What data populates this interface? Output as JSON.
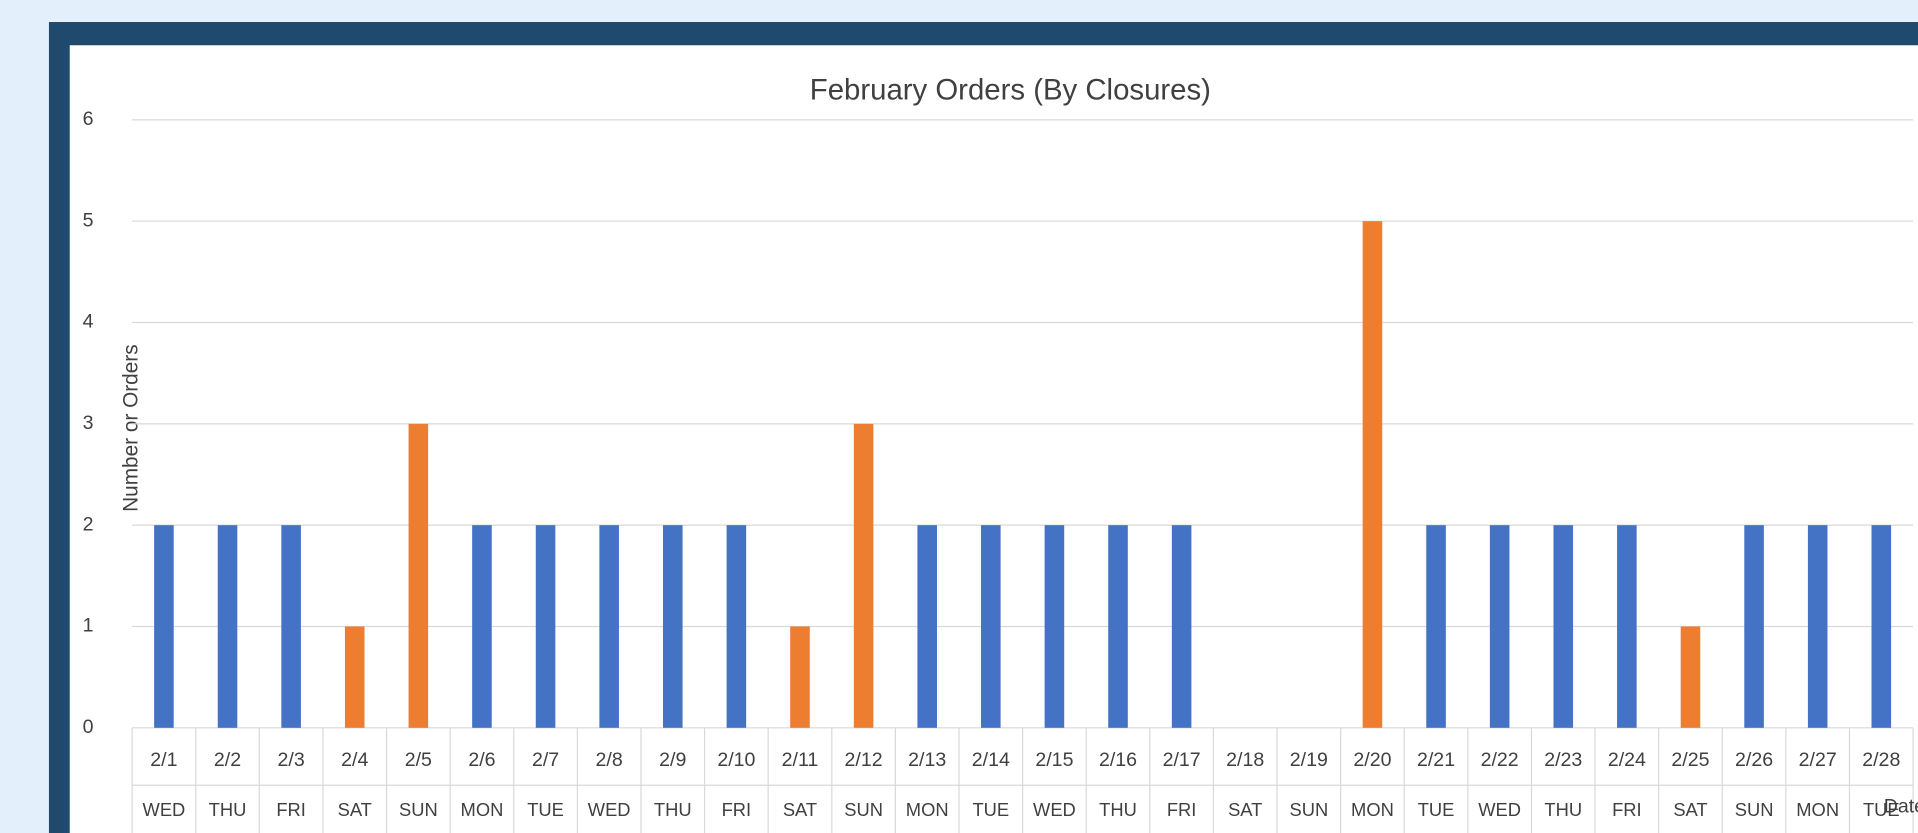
{
  "chart_data": {
    "type": "bar",
    "title": "February Orders (By Closures)",
    "y_label": "Number or Orders",
    "x_label": "Date",
    "categories": [
      "2/1",
      "2/2",
      "2/3",
      "2/4",
      "2/5",
      "2/6",
      "2/7",
      "2/8",
      "2/9",
      "2/10",
      "2/11",
      "2/12",
      "2/13",
      "2/14",
      "2/15",
      "2/16",
      "2/17",
      "2/18",
      "2/19",
      "2/20",
      "2/21",
      "2/22",
      "2/23",
      "2/24",
      "2/25",
      "2/26",
      "2/27",
      "2/28"
    ],
    "weekdays": [
      "WED",
      "THU",
      "FRI",
      "SAT",
      "SUN",
      "MON",
      "TUE",
      "WED",
      "THU",
      "FRI",
      "SAT",
      "SUN",
      "MON",
      "TUE",
      "WED",
      "THU",
      "FRI",
      "SAT",
      "SUN",
      "MON",
      "TUE",
      "WED",
      "THU",
      "FRI",
      "SAT",
      "SUN",
      "MON",
      "TUE"
    ],
    "values": [
      2,
      2,
      2,
      1,
      3,
      2,
      2,
      2,
      2,
      2,
      1,
      3,
      2,
      2,
      2,
      2,
      2,
      0,
      0,
      5,
      2,
      2,
      2,
      2,
      1,
      2,
      2,
      2
    ],
    "colors": [
      "#4472c4",
      "#4472c4",
      "#4472c4",
      "#ed7d31",
      "#ed7d31",
      "#4472c4",
      "#4472c4",
      "#4472c4",
      "#4472c4",
      "#4472c4",
      "#ed7d31",
      "#ed7d31",
      "#4472c4",
      "#4472c4",
      "#4472c4",
      "#4472c4",
      "#4472c4",
      "#ed7d31",
      "#ed7d31",
      "#ed7d31",
      "#4472c4",
      "#4472c4",
      "#4472c4",
      "#4472c4",
      "#ed7d31",
      "#4472c4",
      "#4472c4",
      "#4472c4"
    ],
    "ylim": [
      0,
      6
    ],
    "yticks": [
      0,
      1,
      2,
      3,
      4,
      5,
      6
    ],
    "grid": true
  }
}
